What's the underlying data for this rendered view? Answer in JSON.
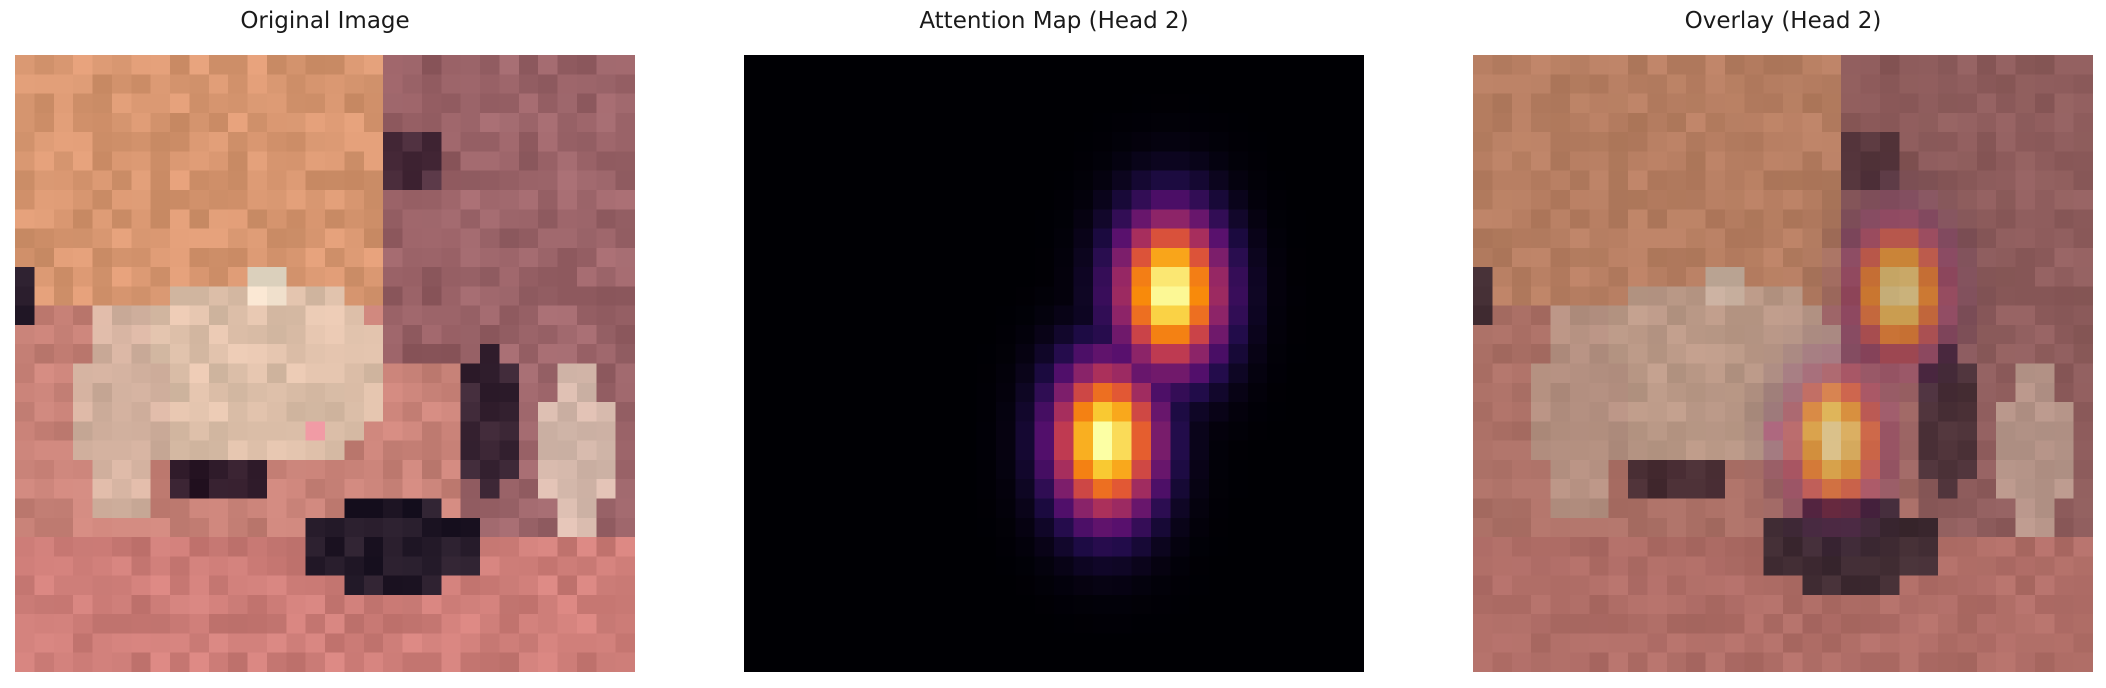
{
  "panels": [
    {
      "title": "Original Image",
      "kind": "original",
      "colormap": "none"
    },
    {
      "title": "Attention Map (Head 2)",
      "kind": "attention",
      "colormap": "inferno"
    },
    {
      "title": "Overlay (Head 2)",
      "kind": "overlay",
      "colormap": "inferno"
    }
  ],
  "colors": {
    "background": "#ffffff",
    "attention_background": "#000004",
    "attention_peak": "#fcffa4"
  }
}
